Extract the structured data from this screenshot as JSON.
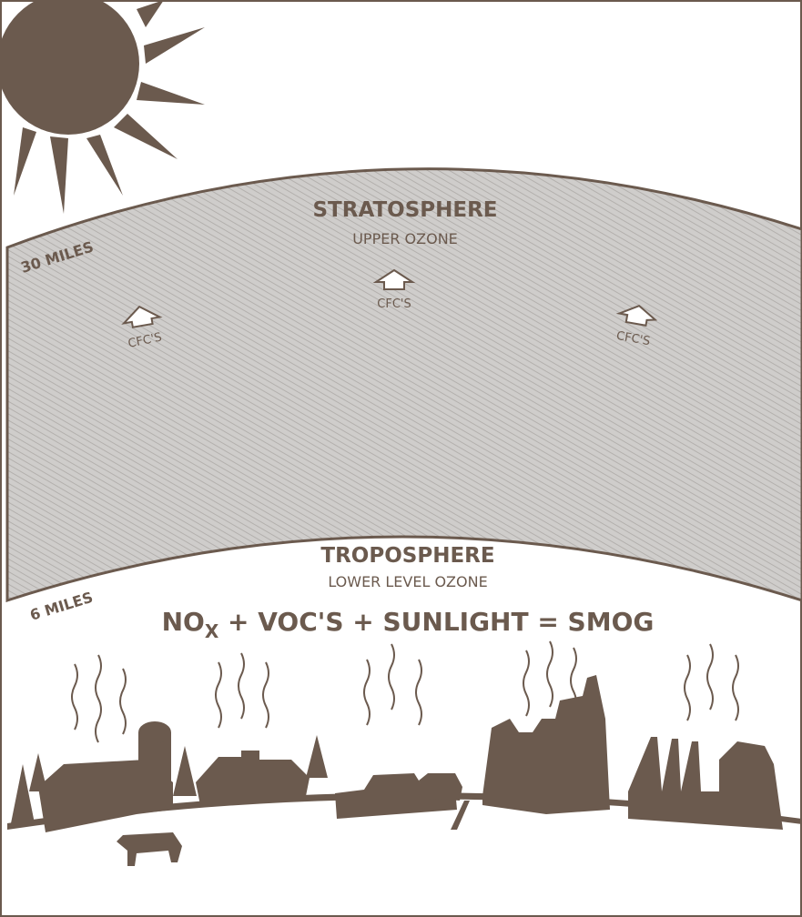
{
  "layers": [
    {
      "title": "STRATOSPHERE",
      "subtitle": "UPPER OZONE",
      "altitude": "30 MILES"
    },
    {
      "title": "TROPOSPHERE",
      "subtitle": "LOWER LEVEL OZONE",
      "altitude": "6 MILES"
    }
  ],
  "cfc_labels": [
    "CFC'S",
    "CFC'S",
    "CFC'S"
  ],
  "equation": {
    "parts": [
      "NO",
      "X",
      " + VOC'S + SUNLIGHT = SMOG"
    ]
  }
}
